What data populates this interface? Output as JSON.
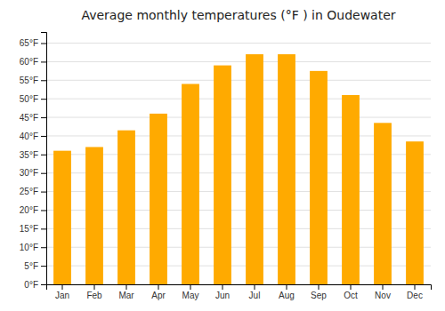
{
  "chart_data": {
    "type": "bar",
    "title": "Average monthly temperatures (°F ) in Oudewater",
    "categories": [
      "Jan",
      "Feb",
      "Mar",
      "Apr",
      "May",
      "Jun",
      "Jul",
      "Aug",
      "Sep",
      "Oct",
      "Nov",
      "Dec"
    ],
    "values": [
      36,
      37,
      41.5,
      46,
      54,
      59,
      62,
      62,
      57.5,
      51,
      43.5,
      38.5
    ],
    "color": "#FFAA00",
    "ylim": [
      0,
      68
    ],
    "yticks": [
      {
        "value": 0,
        "label": "0°F"
      },
      {
        "value": 5,
        "label": "5°F"
      },
      {
        "value": 10,
        "label": "10°F"
      },
      {
        "value": 15,
        "label": "15°F"
      },
      {
        "value": 20,
        "label": "20°F"
      },
      {
        "value": 25,
        "label": "25°F"
      },
      {
        "value": 30,
        "label": "30°F"
      },
      {
        "value": 35,
        "label": "35°F"
      },
      {
        "value": 40,
        "label": "40°F"
      },
      {
        "value": 45,
        "label": "45°F"
      },
      {
        "value": 50,
        "label": "50°F"
      },
      {
        "value": 55,
        "label": "55°F"
      },
      {
        "value": 60,
        "label": "60°F"
      },
      {
        "value": 65,
        "label": "65°F"
      }
    ],
    "grid": true
  }
}
